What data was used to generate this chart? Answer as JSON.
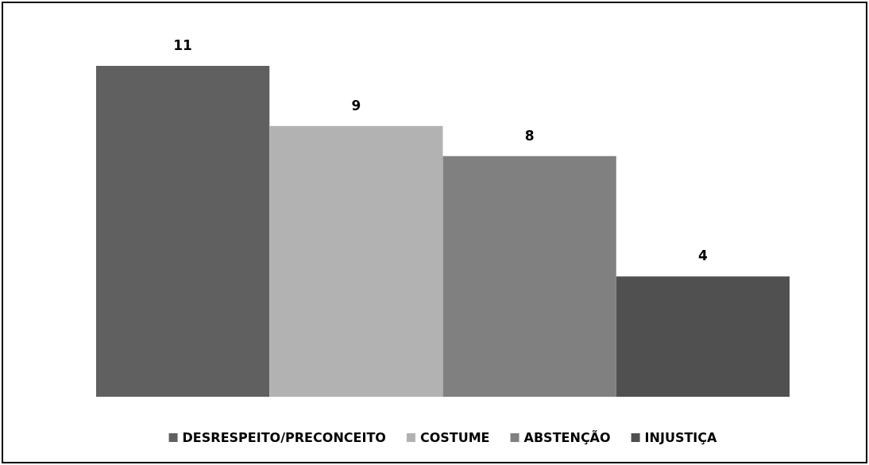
{
  "chart_data": {
    "type": "bar",
    "categories": [
      null
    ],
    "series": [
      {
        "name": "DESRESPEITO/PRECONCEITO",
        "color": "#606060",
        "values": [
          11
        ]
      },
      {
        "name": "COSTUME",
        "color": "#b2b2b2",
        "values": [
          9
        ]
      },
      {
        "name": "ABSTENÇÃO",
        "color": "#808080",
        "values": [
          8
        ]
      },
      {
        "name": "INJUSTIÇA",
        "color": "#505050",
        "values": [
          4
        ]
      }
    ],
    "data_labels": true,
    "legend": "bottom",
    "grid": false
  }
}
